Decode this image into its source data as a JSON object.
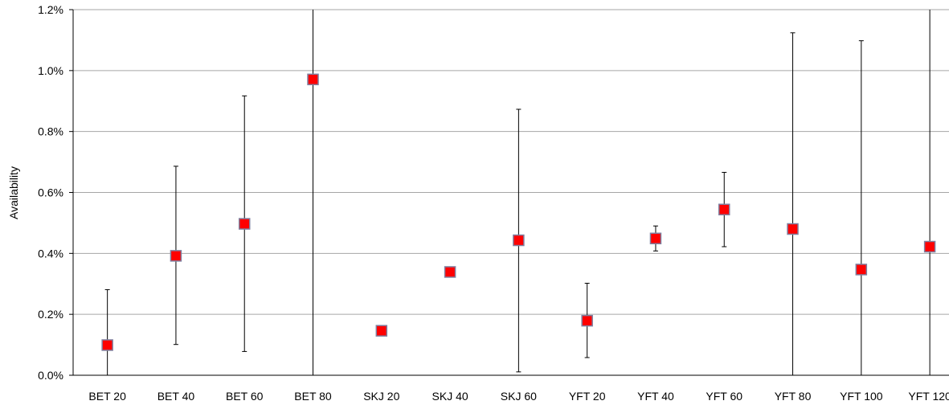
{
  "chart_data": {
    "type": "scatter",
    "title": "",
    "xlabel": "",
    "ylabel": "Availability",
    "ylim": [
      0,
      0.012
    ],
    "yticks": [
      0,
      0.002,
      0.004,
      0.006,
      0.008,
      0.01,
      0.012
    ],
    "ytick_labels": [
      "0.0%",
      "0.2%",
      "0.4%",
      "0.6%",
      "0.8%",
      "1.0%",
      "1.2%"
    ],
    "grid": "horizontal",
    "legend": "none",
    "categories": [
      "BET 20",
      "BET 40",
      "BET 60",
      "BET 80",
      "SKJ 20",
      "SKJ 40",
      "SKJ 60",
      "YFT 20",
      "YFT 40",
      "YFT 60",
      "YFT 80",
      "YFT 100",
      "YFT 120"
    ],
    "series": [
      {
        "values": [
          0.00099,
          0.00392,
          0.00497,
          0.00971,
          0.00146,
          0.00339,
          0.00443,
          0.00179,
          0.00449,
          0.00544,
          0.0048,
          0.00347,
          0.00422
        ],
        "err_low": [
          0.0,
          0.00101,
          0.00078,
          0.0,
          null,
          null,
          0.00011,
          0.00058,
          0.00408,
          0.00422,
          0.0,
          0.0,
          0.0
        ],
        "err_high": [
          0.00281,
          0.00686,
          0.00917,
          0.012,
          null,
          null,
          0.00873,
          0.00302,
          0.0049,
          0.00666,
          0.01124,
          0.01098,
          0.012
        ],
        "marker_color": "#ff0000",
        "marker_edge": "#7f7f9f"
      }
    ],
    "colors": {
      "grid": "#a6a6a6",
      "axis": "#000000",
      "error_bar": "#000000"
    }
  }
}
